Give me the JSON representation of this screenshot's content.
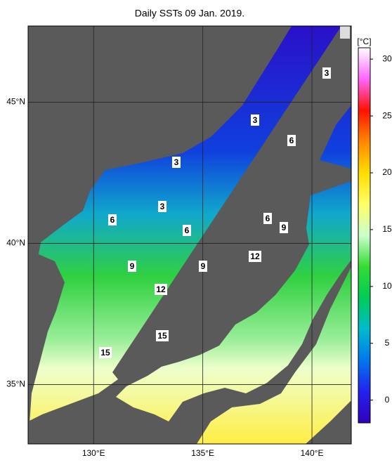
{
  "title": "Daily SSTs 09 Jan. 2019.",
  "map": {
    "lonlim": [
      127,
      141.8
    ],
    "latlim": [
      32.9,
      47.7
    ],
    "lonticks": [
      {
        "value": 130,
        "label": "130°E"
      },
      {
        "value": 135,
        "label": "135°E"
      },
      {
        "value": 140,
        "label": "140°E"
      }
    ],
    "latticks": [
      {
        "value": 45,
        "label": "45°N"
      },
      {
        "value": 40,
        "label": "40°N"
      },
      {
        "value": 35,
        "label": "35°N"
      }
    ],
    "contour_labels": [
      3,
      3,
      6,
      3,
      3,
      6,
      6,
      9,
      6,
      12,
      9,
      9,
      12,
      15,
      15
    ],
    "land_color": "#5a5a5a"
  },
  "colorbar": {
    "unit": "[°C]",
    "lim": [
      -2,
      31
    ],
    "ticks": [
      0,
      5,
      10,
      15,
      20,
      25,
      30
    ],
    "colors": [
      "#3300bb",
      "#2222ee",
      "#0077ee",
      "#00bbcc",
      "#00cc55",
      "#33dd33",
      "#ccffcc",
      "#ffff66",
      "#ffdd00",
      "#ff8800",
      "#ff1100",
      "#ff66ff",
      "#ffffff"
    ]
  }
}
